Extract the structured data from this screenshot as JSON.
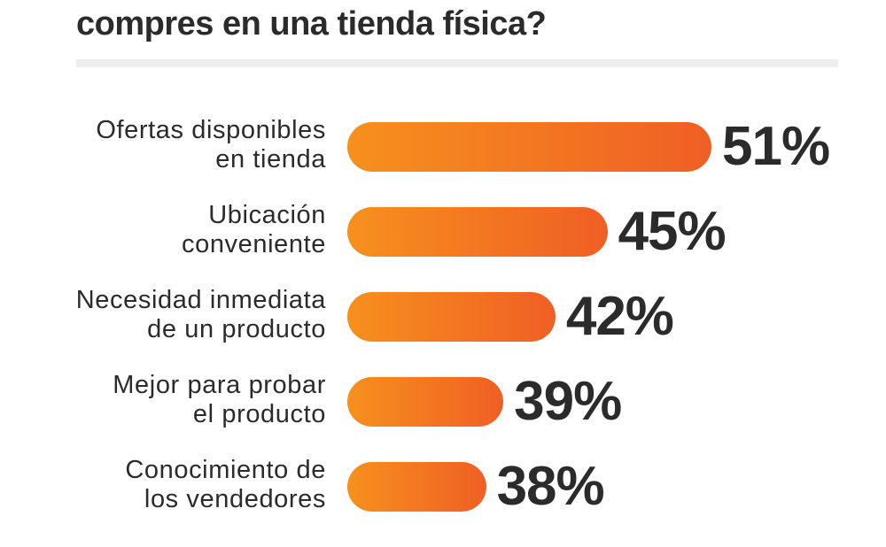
{
  "chart_data": {
    "type": "bar",
    "orientation": "horizontal",
    "title": "compres en una tienda física?",
    "categories": [
      [
        "Ofertas disponibles",
        "en tienda"
      ],
      [
        "Ubicación",
        "conveniente"
      ],
      [
        "Necesidad inmediata",
        "de un producto"
      ],
      [
        "Mejor para probar",
        "el producto"
      ],
      [
        "Conocimiento de",
        "los vendedores"
      ]
    ],
    "values": [
      51,
      45,
      42,
      39,
      38
    ],
    "value_labels": [
      "51%",
      "45%",
      "42%",
      "39%",
      "38%"
    ],
    "xlim": [
      30,
      51
    ],
    "unit": "%",
    "grid": false,
    "colors": {
      "bar_start": "#f7901e",
      "bar_end": "#ef5f24",
      "text": "#2b2b2b"
    }
  }
}
